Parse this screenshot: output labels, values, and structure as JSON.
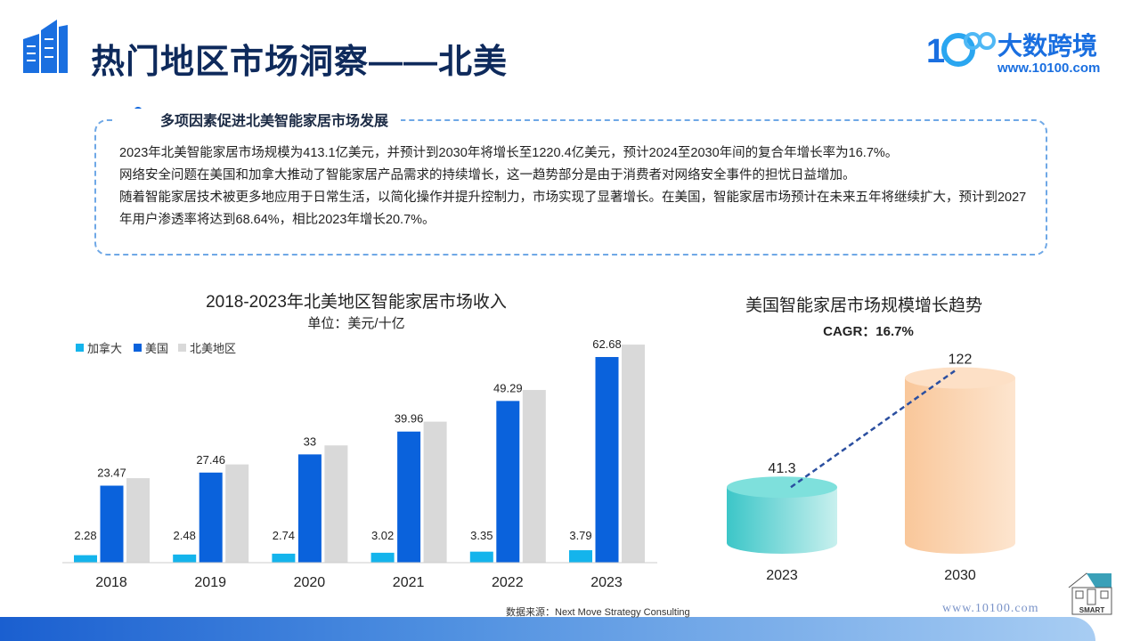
{
  "header": {
    "title": "热门地区市场洞察——北美",
    "brand": "大数跨境",
    "brand_url": "www.10100.com",
    "logo_mark": "10100"
  },
  "insight": {
    "title": "多项因素促进北美智能家居市场发展",
    "paragraphs": [
      "2023年北美智能家居市场规模为413.1亿美元，并预计到2030年将增长至1220.4亿美元，预计2024至2030年间的复合年增长率为16.7%。",
      "网络安全问题在美国和加拿大推动了智能家居产品需求的持续增长，这一趋势部分是由于消费者对网络安全事件的担忧日益增加。",
      "随着智能家居技术被更多地应用于日常生活，以简化操作并提升控制力，市场实现了显著增长。在美国，智能家居市场预计在未来五年将继续扩大，预计到2027年用户渗透率将达到68.64%，相比2023年增长20.7%。"
    ]
  },
  "chart_data": [
    {
      "type": "bar",
      "title": "2018-2023年北美地区智能家居市场收入",
      "subtitle": "单位：美元/十亿",
      "categories": [
        "2018",
        "2019",
        "2020",
        "2021",
        "2022",
        "2023"
      ],
      "series": [
        {
          "name": "加拿大",
          "color": "#14b4ec",
          "values": [
            2.28,
            2.48,
            2.74,
            3.02,
            3.35,
            3.79
          ],
          "labels": [
            "2.28",
            "2.48",
            "2.74",
            "3.02",
            "3.35",
            "3.79"
          ]
        },
        {
          "name": "美国",
          "color": "#0a62dc",
          "values": [
            23.47,
            27.46,
            33,
            39.96,
            49.29,
            62.68
          ],
          "labels": [
            "23.47",
            "27.46",
            "33",
            "39.96",
            "49.29",
            "62.68"
          ]
        },
        {
          "name": "北美地区",
          "color": "#d9d9d9",
          "values": [
            25.75,
            29.94,
            35.74,
            42.98,
            52.64,
            66.47
          ]
        }
      ],
      "ylim": [
        0,
        68
      ],
      "legend": "top-left",
      "grid": false
    },
    {
      "type": "bar",
      "title": "美国智能家居市场规模增长趋势",
      "annotation": "CAGR：16.7%",
      "categories": [
        "2023",
        "2030"
      ],
      "values": [
        41.3,
        122
      ],
      "labels": [
        "41.3",
        "122"
      ]
    }
  ],
  "footer": {
    "source": "数据来源：Next Move Strategy Consulting",
    "url": "www.10100.com",
    "badge": "SMART"
  }
}
